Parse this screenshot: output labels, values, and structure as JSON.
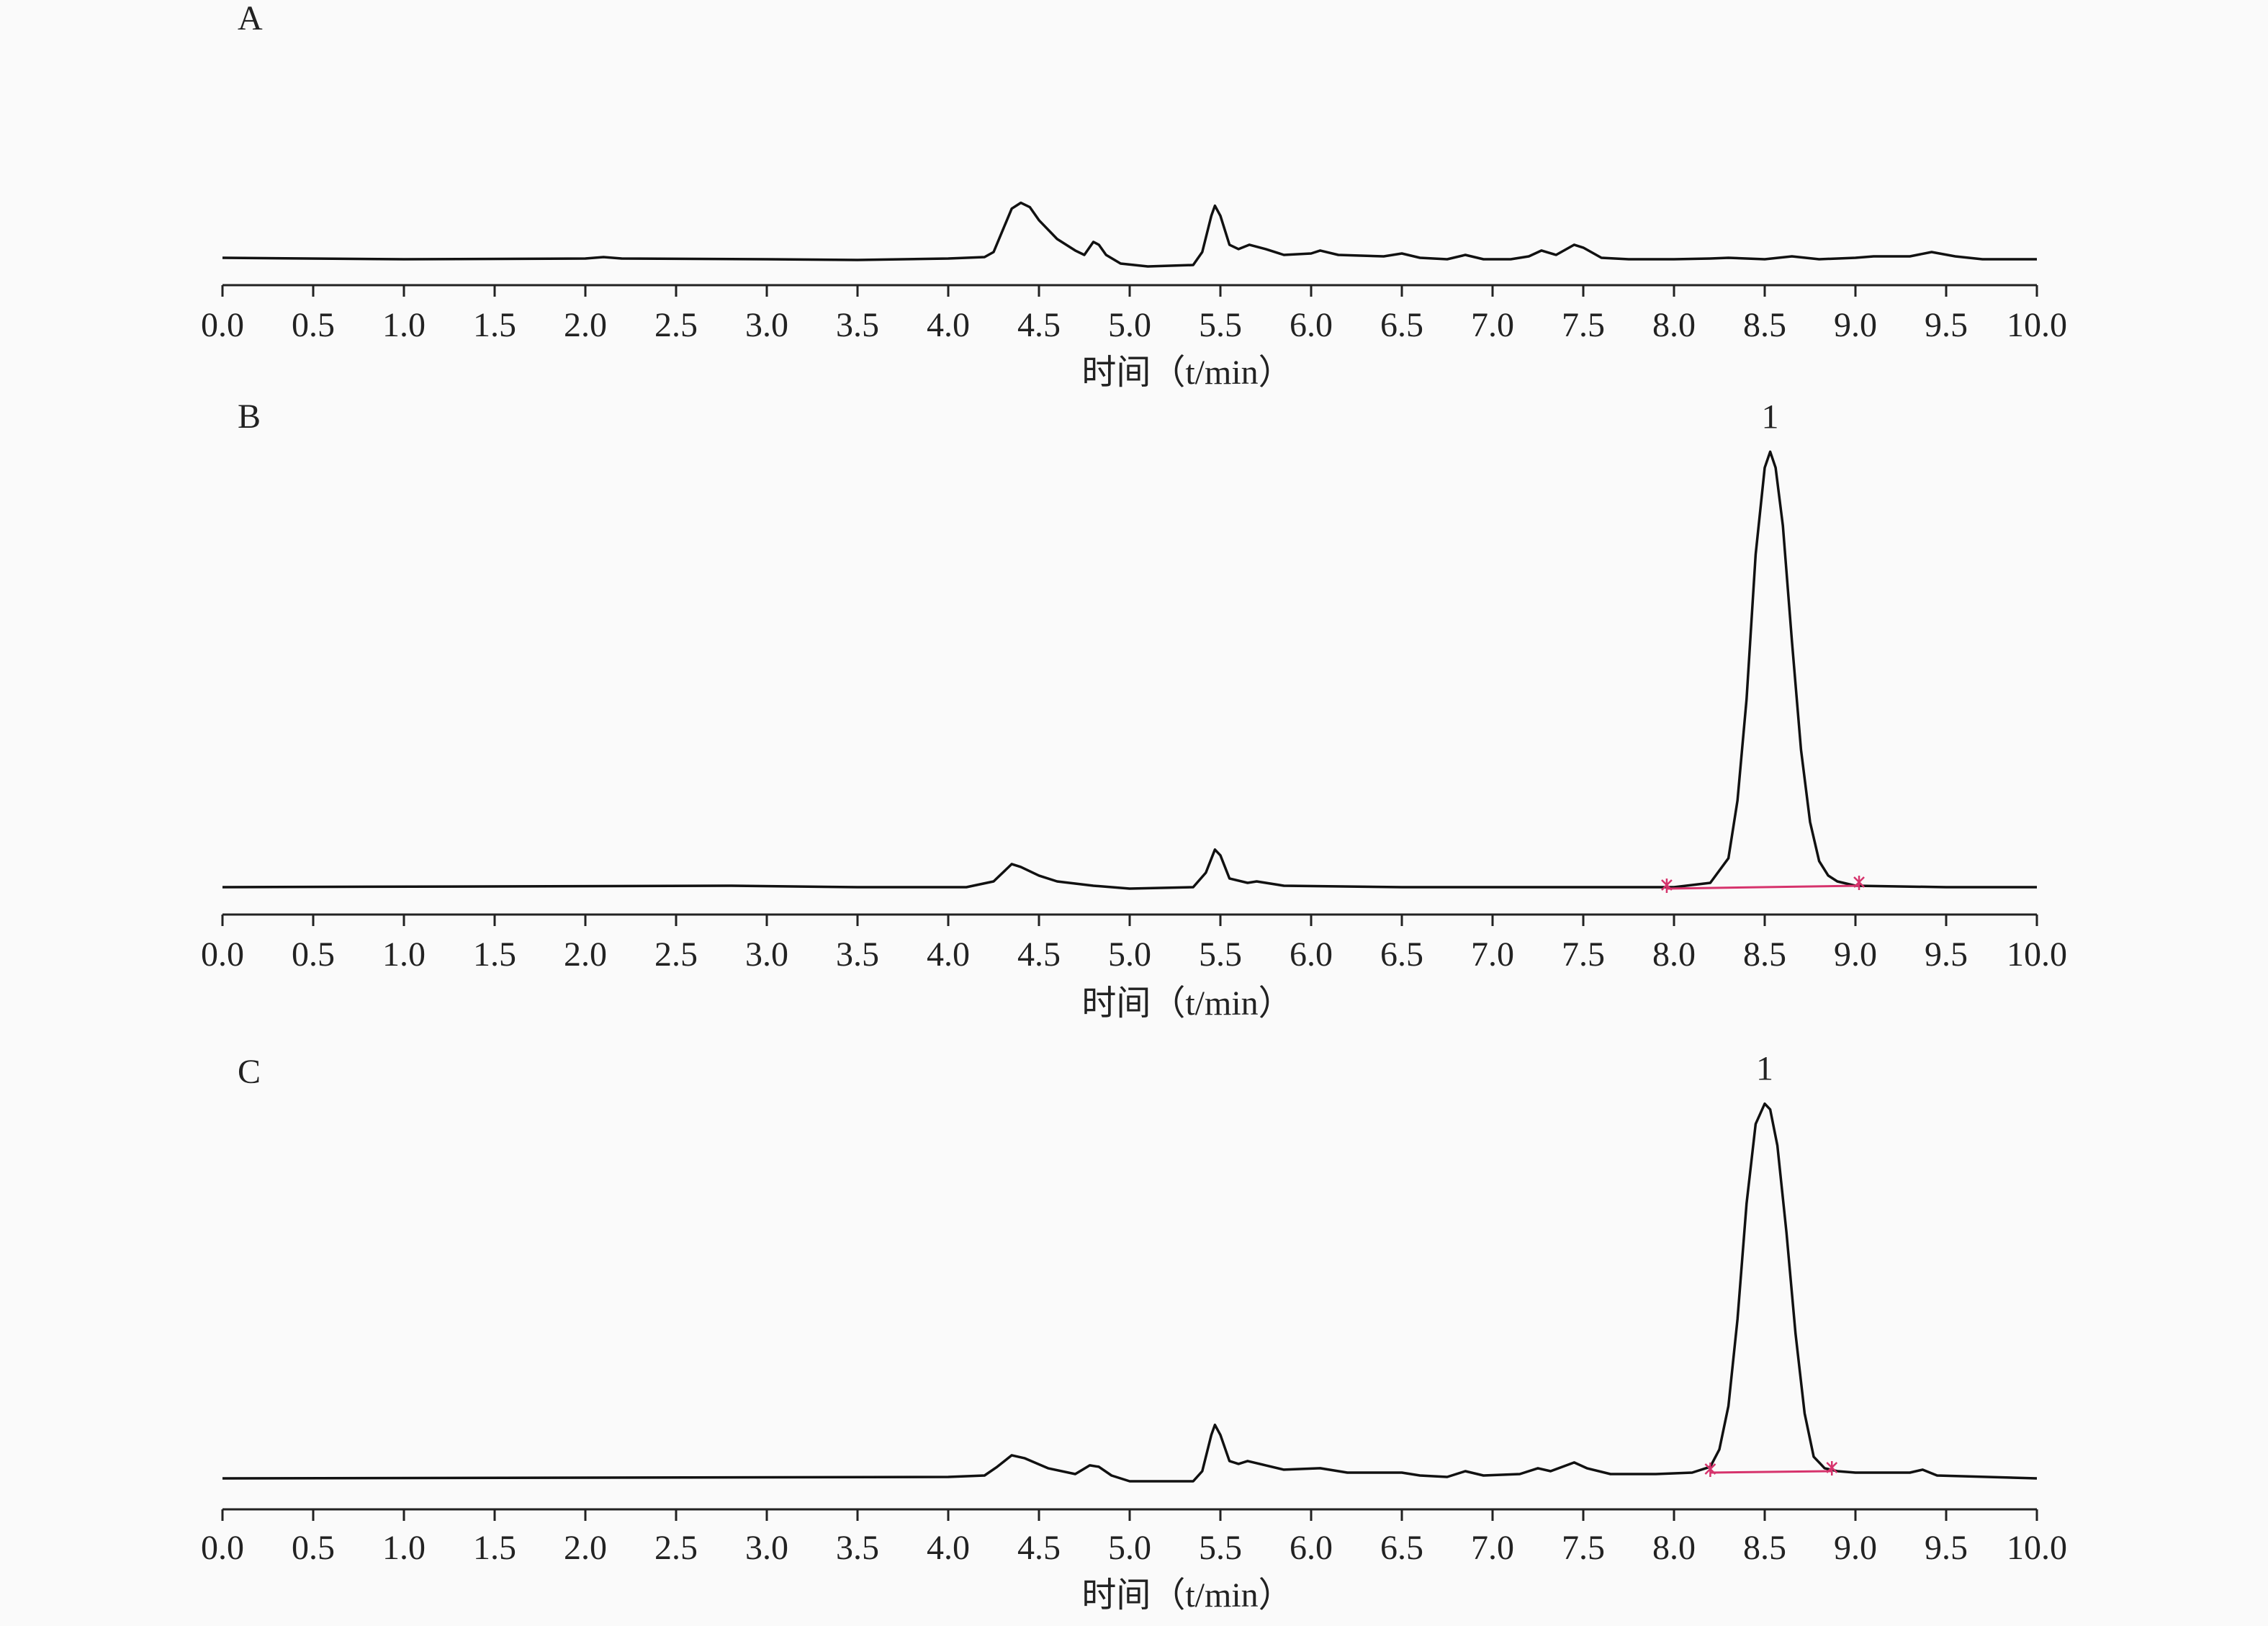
{
  "chart_data": [
    {
      "type": "line",
      "panel_label": "A",
      "x_label": "时间（t/min）",
      "xlim": [
        0,
        10
      ],
      "xticks": [
        {
          "value": 0,
          "label": "0.0"
        },
        {
          "value": 0.5,
          "label": "0.5"
        },
        {
          "value": 1,
          "label": "1.0"
        },
        {
          "value": 1.5,
          "label": "1.5"
        },
        {
          "value": 2,
          "label": "2.0"
        },
        {
          "value": 2.5,
          "label": "2.5"
        },
        {
          "value": 3,
          "label": "3.0"
        },
        {
          "value": 3.5,
          "label": "3.5"
        },
        {
          "value": 4,
          "label": "4.0"
        },
        {
          "value": 4.5,
          "label": "4.5"
        },
        {
          "value": 5,
          "label": "5.0"
        },
        {
          "value": 5.5,
          "label": "5.5"
        },
        {
          "value": 6,
          "label": "6.0"
        },
        {
          "value": 6.5,
          "label": "6.5"
        },
        {
          "value": 7,
          "label": "7.0"
        },
        {
          "value": 7.5,
          "label": "7.5"
        },
        {
          "value": 8,
          "label": "8.0"
        },
        {
          "value": 8.5,
          "label": "8.5"
        },
        {
          "value": 9,
          "label": "9.0"
        },
        {
          "value": 9.5,
          "label": "9.5"
        },
        {
          "value": 10,
          "label": "10.0"
        }
      ],
      "color": "#111111",
      "x": [
        0,
        1,
        2,
        2.1,
        2.2,
        3,
        3.5,
        4,
        4.2,
        4.25,
        4.3,
        4.35,
        4.4,
        4.45,
        4.5,
        4.6,
        4.7,
        4.75,
        4.8,
        4.83,
        4.87,
        4.95,
        5.1,
        5.35,
        5.4,
        5.45,
        5.47,
        5.5,
        5.55,
        5.6,
        5.66,
        5.75,
        5.85,
        6,
        6.05,
        6.15,
        6.4,
        6.5,
        6.6,
        6.75,
        6.85,
        6.95,
        7.1,
        7.2,
        7.27,
        7.35,
        7.45,
        7.5,
        7.6,
        7.75,
        8,
        8.2,
        8.3,
        8.5,
        8.65,
        8.8,
        9,
        9.1,
        9.3,
        9.42,
        9.55,
        9.7,
        10
      ],
      "values": [
        1,
        0,
        0.5,
        1.5,
        0.5,
        0,
        -0.5,
        0.5,
        1.5,
        5,
        20,
        35,
        39,
        36,
        27,
        14,
        6,
        3,
        12,
        10,
        3,
        -3,
        -5,
        -4,
        5,
        30,
        37,
        30,
        10,
        7,
        10,
        7,
        3,
        4,
        6,
        3,
        2,
        4,
        1,
        0,
        3,
        0,
        0,
        2,
        6,
        3,
        10,
        8,
        1,
        0,
        0,
        0.5,
        1,
        0,
        2,
        0,
        1,
        2,
        2,
        5,
        2,
        0,
        0
      ]
    },
    {
      "type": "line",
      "panel_label": "B",
      "x_label": "时间（t/min）",
      "xlim": [
        0,
        10
      ],
      "xticks": [
        {
          "value": 0,
          "label": "0.0"
        },
        {
          "value": 0.5,
          "label": "0.5"
        },
        {
          "value": 1,
          "label": "1.0"
        },
        {
          "value": 1.5,
          "label": "1.5"
        },
        {
          "value": 2,
          "label": "2.0"
        },
        {
          "value": 2.5,
          "label": "2.5"
        },
        {
          "value": 3,
          "label": "3.0"
        },
        {
          "value": 3.5,
          "label": "3.5"
        },
        {
          "value": 4,
          "label": "4.0"
        },
        {
          "value": 4.5,
          "label": "4.5"
        },
        {
          "value": 5,
          "label": "5.0"
        },
        {
          "value": 5.5,
          "label": "5.5"
        },
        {
          "value": 6,
          "label": "6.0"
        },
        {
          "value": 6.5,
          "label": "6.5"
        },
        {
          "value": 7,
          "label": "7.0"
        },
        {
          "value": 7.5,
          "label": "7.5"
        },
        {
          "value": 8,
          "label": "8.0"
        },
        {
          "value": 8.5,
          "label": "8.5"
        },
        {
          "value": 9,
          "label": "9.0"
        },
        {
          "value": 9.5,
          "label": "9.5"
        },
        {
          "value": 10,
          "label": "10.0"
        }
      ],
      "color": "#111111",
      "x": [
        0,
        2.8,
        3.5,
        4.1,
        4.25,
        4.35,
        4.4,
        4.5,
        4.6,
        4.8,
        5,
        5.35,
        5.42,
        5.47,
        5.5,
        5.55,
        5.65,
        5.7,
        5.85,
        6.5,
        8,
        8.2,
        8.3,
        8.35,
        8.4,
        8.45,
        8.5,
        8.53,
        8.56,
        8.6,
        8.65,
        8.7,
        8.75,
        8.8,
        8.85,
        8.9,
        9,
        9.5,
        10
      ],
      "values": [
        0,
        1,
        0,
        0,
        4,
        16,
        14,
        8,
        4,
        1,
        -1,
        0,
        10,
        26,
        22,
        6,
        3,
        4,
        1,
        0,
        0,
        3,
        20,
        60,
        130,
        230,
        290,
        301,
        290,
        250,
        170,
        95,
        45,
        18,
        8,
        4,
        1,
        0,
        0
      ],
      "annotations": [
        {
          "text": "1",
          "x": 8.53
        }
      ],
      "integration": {
        "color": "#d6336c",
        "x": [
          7.96,
          9.02
        ],
        "values": [
          -1,
          1
        ]
      }
    },
    {
      "type": "line",
      "panel_label": "C",
      "x_label": "时间（t/min）",
      "xlim": [
        0,
        10
      ],
      "xticks": [
        {
          "value": 0,
          "label": "0.0"
        },
        {
          "value": 0.5,
          "label": "0.5"
        },
        {
          "value": 1,
          "label": "1.0"
        },
        {
          "value": 1.5,
          "label": "1.5"
        },
        {
          "value": 2,
          "label": "2.0"
        },
        {
          "value": 2.5,
          "label": "2.5"
        },
        {
          "value": 3,
          "label": "3.0"
        },
        {
          "value": 3.5,
          "label": "3.5"
        },
        {
          "value": 4,
          "label": "4.0"
        },
        {
          "value": 4.5,
          "label": "4.5"
        },
        {
          "value": 5,
          "label": "5.0"
        },
        {
          "value": 5.5,
          "label": "5.5"
        },
        {
          "value": 6,
          "label": "6.0"
        },
        {
          "value": 6.5,
          "label": "6.5"
        },
        {
          "value": 7,
          "label": "7.0"
        },
        {
          "value": 7.5,
          "label": "7.5"
        },
        {
          "value": 8,
          "label": "8.0"
        },
        {
          "value": 8.5,
          "label": "8.5"
        },
        {
          "value": 9,
          "label": "9.0"
        },
        {
          "value": 9.5,
          "label": "9.5"
        },
        {
          "value": 10,
          "label": "10.0"
        }
      ],
      "color": "#111111",
      "x": [
        0,
        4,
        4.2,
        4.27,
        4.35,
        4.42,
        4.55,
        4.7,
        4.78,
        4.83,
        4.9,
        5,
        5.35,
        5.4,
        5.45,
        5.47,
        5.5,
        5.55,
        5.6,
        5.65,
        5.75,
        5.85,
        6.05,
        6.2,
        6.5,
        6.6,
        6.75,
        6.85,
        6.95,
        7.15,
        7.25,
        7.32,
        7.45,
        7.52,
        7.65,
        7.9,
        8.1,
        8.2,
        8.25,
        8.3,
        8.35,
        8.4,
        8.45,
        8.5,
        8.53,
        8.57,
        8.62,
        8.67,
        8.72,
        8.77,
        8.83,
        8.9,
        9,
        9.3,
        9.37,
        9.45,
        10
      ],
      "values": [
        0,
        1,
        2,
        8,
        16,
        14,
        7,
        3,
        9,
        8,
        2,
        -2,
        -2,
        5,
        30,
        37,
        30,
        12,
        10,
        12,
        9,
        6,
        7,
        4,
        4,
        2,
        1,
        5,
        2,
        3,
        7,
        5,
        11,
        7,
        3,
        3,
        4,
        8,
        20,
        50,
        110,
        190,
        245,
        259,
        255,
        230,
        170,
        100,
        45,
        15,
        7,
        5,
        4,
        4,
        6,
        2,
        0
      ],
      "annotations": [
        {
          "text": "1",
          "x": 8.5
        }
      ],
      "integration": {
        "color": "#d6336c",
        "x": [
          8.2,
          8.87
        ],
        "values": [
          4,
          5
        ]
      }
    }
  ]
}
